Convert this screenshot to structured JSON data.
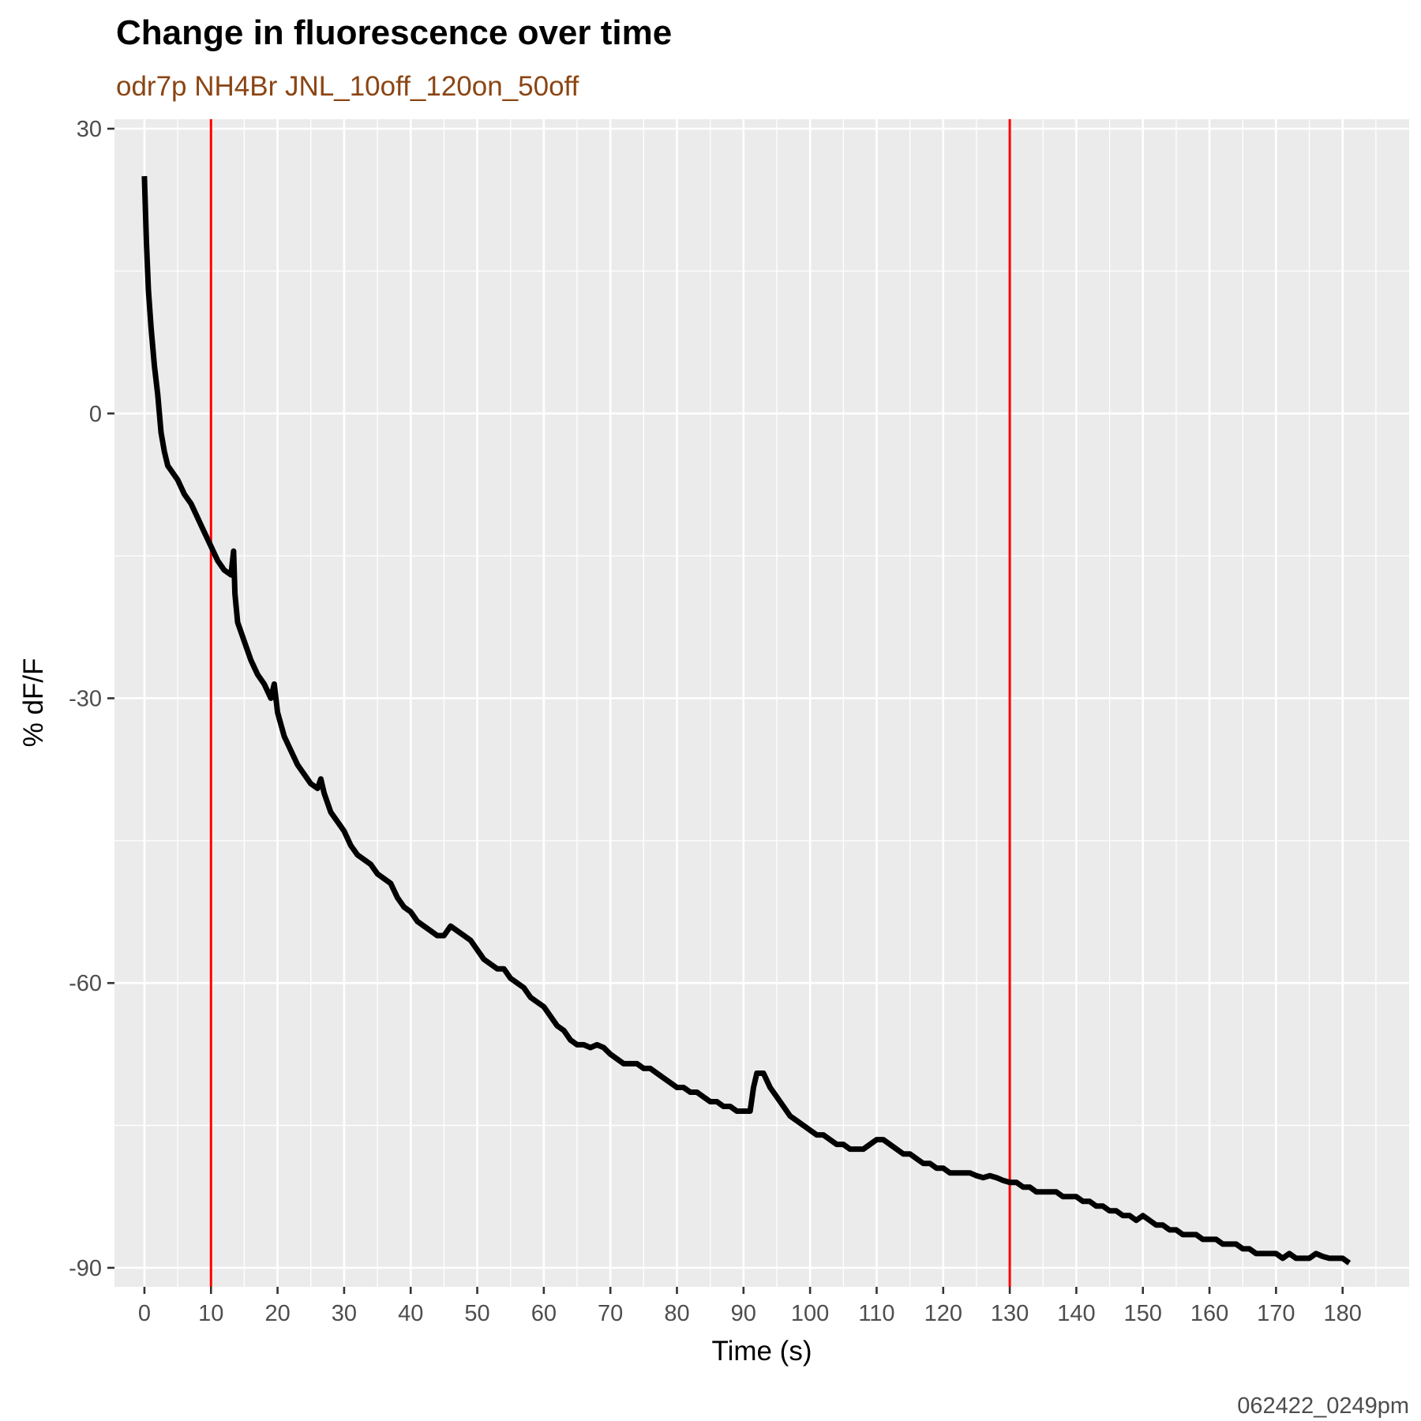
{
  "chart_data": {
    "type": "line",
    "title": "Change in fluorescence over time",
    "subtitle": "odr7p NH4Br JNL_10off_120on_50off",
    "caption": "062422_0249pm",
    "xlabel": "Time (s)",
    "ylabel": "% dF/F",
    "xlim": [
      -4.5,
      190
    ],
    "ylim": [
      -92,
      31
    ],
    "x_ticks": [
      0,
      10,
      20,
      30,
      40,
      50,
      60,
      70,
      80,
      90,
      100,
      110,
      120,
      130,
      140,
      150,
      160,
      170,
      180
    ],
    "y_ticks": [
      30,
      0,
      -30,
      -60,
      -90
    ],
    "y_tick_labels": [
      "30",
      "0",
      "-30",
      "-60",
      "-90"
    ],
    "grid": true,
    "panel_background": "#ebebeb",
    "grid_color": "#ffffff",
    "line_color": "#000000",
    "vlines": [
      {
        "x": 10,
        "color": "#ff0000"
      },
      {
        "x": 130,
        "color": "#ff0000"
      }
    ],
    "series": [
      {
        "x": [
          0,
          0.3,
          0.6,
          1,
          1.5,
          2,
          2.5,
          3,
          3.5,
          4,
          4.5,
          5,
          6,
          7,
          8,
          9,
          10,
          11,
          12,
          13,
          13.4,
          13.6,
          14,
          15,
          16,
          17,
          18,
          19,
          19.5,
          20,
          21,
          22,
          23,
          24,
          25,
          26,
          26.5,
          27,
          28,
          29,
          30,
          31,
          32,
          33,
          34,
          35,
          36,
          37,
          38,
          39,
          40,
          41,
          42,
          43,
          44,
          45,
          46,
          47,
          48,
          49,
          50,
          51,
          52,
          53,
          54,
          55,
          56,
          57,
          58,
          59,
          60,
          61,
          62,
          63,
          64,
          65,
          66,
          67,
          68,
          69,
          70,
          71,
          72,
          73,
          74,
          75,
          76,
          77,
          78,
          79,
          80,
          81,
          82,
          83,
          84,
          85,
          86,
          87,
          88,
          89,
          90,
          91,
          91.5,
          92,
          93,
          94,
          95,
          96,
          97,
          98,
          99,
          100,
          101,
          102,
          103,
          104,
          105,
          106,
          107,
          108,
          109,
          110,
          111,
          112,
          113,
          114,
          115,
          116,
          117,
          118,
          119,
          120,
          121,
          122,
          123,
          124,
          125,
          126,
          127,
          128,
          129,
          130,
          131,
          132,
          133,
          134,
          135,
          136,
          137,
          138,
          139,
          140,
          141,
          142,
          143,
          144,
          145,
          146,
          147,
          148,
          149,
          150,
          151,
          152,
          153,
          154,
          155,
          156,
          157,
          158,
          159,
          160,
          161,
          162,
          163,
          164,
          165,
          166,
          167,
          168,
          169,
          170,
          171,
          172,
          173,
          174,
          175,
          176,
          177,
          178,
          179,
          180,
          181
        ],
        "values": [
          25,
          18,
          13,
          9,
          5,
          2,
          -2,
          -4,
          -5.5,
          -6,
          -6.5,
          -7,
          -8.5,
          -9.5,
          -11,
          -12.5,
          -14,
          -15.5,
          -16.5,
          -17,
          -14.5,
          -19,
          -22,
          -24,
          -26,
          -27.5,
          -28.5,
          -30,
          -28.5,
          -31.5,
          -34,
          -35.5,
          -37,
          -38,
          -39,
          -39.5,
          -38.5,
          -40,
          -42,
          -43,
          -44,
          -45.5,
          -46.5,
          -47,
          -47.5,
          -48.5,
          -49,
          -49.5,
          -51,
          -52,
          -52.5,
          -53.5,
          -54,
          -54.5,
          -55,
          -55,
          -54,
          -54.5,
          -55,
          -55.5,
          -56.5,
          -57.5,
          -58,
          -58.5,
          -58.5,
          -59.5,
          -60,
          -60.5,
          -61.5,
          -62,
          -62.5,
          -63.5,
          -64.5,
          -65,
          -66,
          -66.5,
          -66.5,
          -66.8,
          -66.5,
          -66.8,
          -67.5,
          -68,
          -68.5,
          -68.5,
          -68.5,
          -69,
          -69,
          -69.5,
          -70,
          -70.5,
          -71,
          -71,
          -71.5,
          -71.5,
          -72,
          -72.5,
          -72.5,
          -73,
          -73,
          -73.5,
          -73.5,
          -73.5,
          -71,
          -69.5,
          -69.5,
          -71,
          -72,
          -73,
          -74,
          -74.5,
          -75,
          -75.5,
          -76,
          -76,
          -76.5,
          -77,
          -77,
          -77.5,
          -77.5,
          -77.5,
          -77,
          -76.5,
          -76.5,
          -77,
          -77.5,
          -78,
          -78,
          -78.5,
          -79,
          -79,
          -79.5,
          -79.5,
          -80,
          -80,
          -80,
          -80,
          -80.3,
          -80.5,
          -80.3,
          -80.5,
          -80.8,
          -81,
          -81,
          -81.5,
          -81.5,
          -82,
          -82,
          -82,
          -82,
          -82.5,
          -82.5,
          -82.5,
          -83,
          -83,
          -83.5,
          -83.5,
          -84,
          -84,
          -84.5,
          -84.5,
          -85,
          -84.5,
          -85,
          -85.5,
          -85.5,
          -86,
          -86,
          -86.5,
          -86.5,
          -86.5,
          -87,
          -87,
          -87,
          -87.5,
          -87.5,
          -87.5,
          -88,
          -88,
          -88.5,
          -88.5,
          -88.5,
          -88.5,
          -89,
          -88.5,
          -89,
          -89,
          -89,
          -88.5,
          -88.8,
          -89,
          -89,
          -89,
          -89.5
        ]
      }
    ]
  }
}
